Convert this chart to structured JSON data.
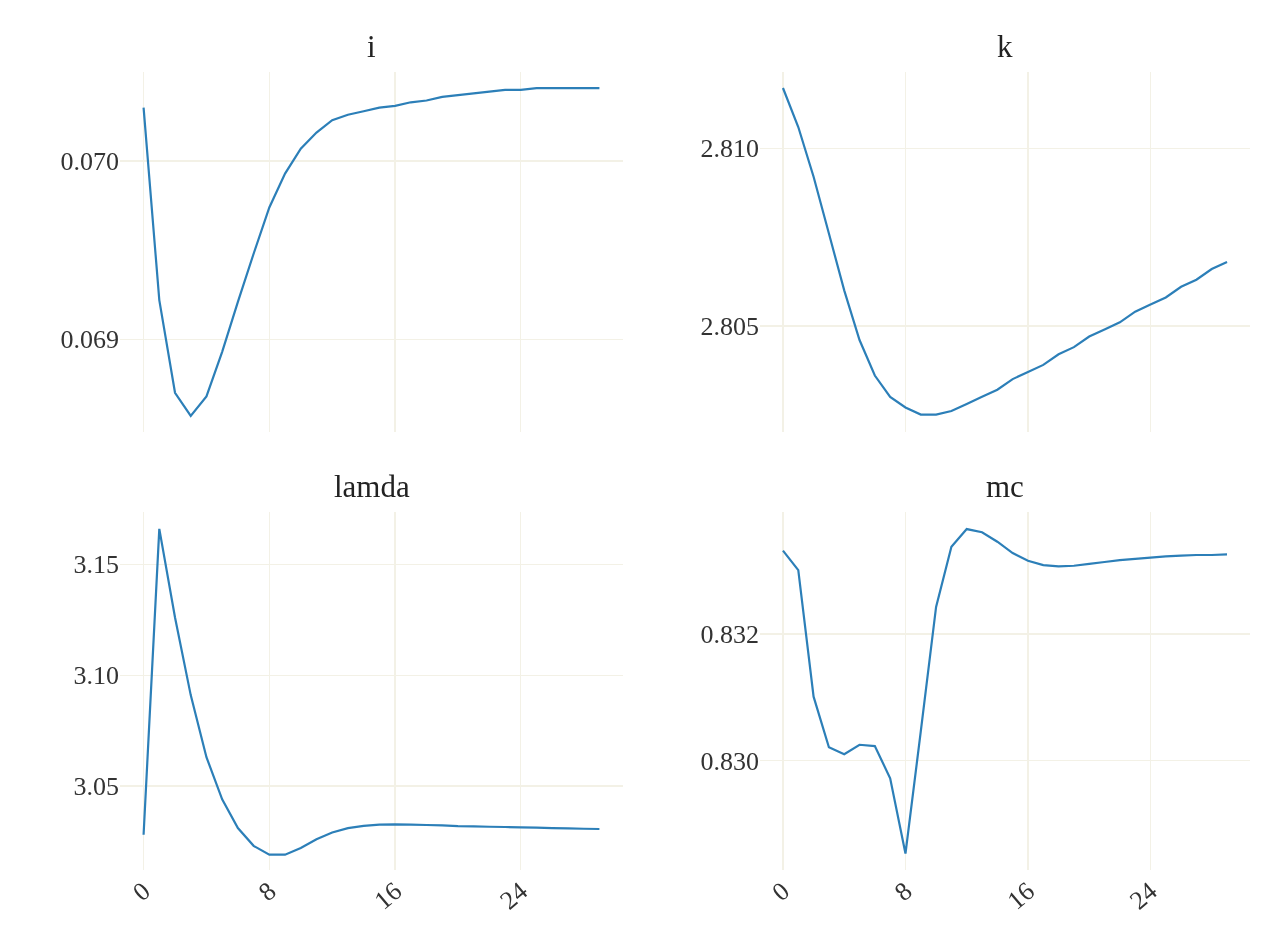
{
  "chart_data": [
    {
      "type": "line",
      "title": "i",
      "x": [
        0,
        1,
        2,
        3,
        4,
        5,
        6,
        7,
        8,
        9,
        10,
        11,
        12,
        13,
        14,
        15,
        16,
        17,
        18,
        19,
        20,
        21,
        22,
        23,
        24,
        25,
        26,
        27,
        28,
        29
      ],
      "xlim": [
        -1.5,
        30.5
      ],
      "xticks": [
        0,
        8,
        16,
        24
      ],
      "ylim": [
        0.06848,
        0.0705
      ],
      "yticks": [
        0.069,
        {
          "value": 0.07,
          "label": "0.070"
        }
      ],
      "grid": true,
      "tick_labels": "y",
      "line_style": "solid",
      "series": [
        {
          "color": "#2c7fb8",
          "values": [
            0.0703,
            0.06922,
            0.0687,
            0.06857,
            0.06868,
            0.06893,
            0.06921,
            0.06948,
            0.06974,
            0.06993,
            0.07007,
            0.07016,
            0.07023,
            0.07026,
            0.07028,
            0.0703,
            0.07031,
            0.07033,
            0.07034,
            0.07036,
            0.07037,
            0.07038,
            0.07039,
            0.0704,
            0.0704,
            0.07041,
            0.07041,
            0.07041,
            0.07041,
            0.07041
          ]
        }
      ]
    },
    {
      "type": "line",
      "title": "k",
      "x": [
        0,
        1,
        2,
        3,
        4,
        5,
        6,
        7,
        8,
        9,
        10,
        11,
        12,
        13,
        14,
        15,
        16,
        17,
        18,
        19,
        20,
        21,
        22,
        23,
        24,
        25,
        26,
        27,
        28,
        29
      ],
      "xlim": [
        -1.5,
        30.5
      ],
      "xticks": [
        0,
        8,
        16,
        24
      ],
      "ylim": [
        2.80201,
        2.81215
      ],
      "yticks": [
        2.805,
        {
          "value": 2.81,
          "label": "2.810"
        }
      ],
      "grid": true,
      "tick_labels": "y",
      "line_style": "solid",
      "series": [
        {
          "color": "#2c7fb8",
          "values": [
            2.8117,
            2.8106,
            2.8092,
            2.8076,
            2.806,
            2.8046,
            2.8036,
            2.803,
            2.8027,
            2.8025,
            2.8025,
            2.8026,
            2.8028,
            2.803,
            2.8032,
            2.8035,
            2.8037,
            2.8039,
            2.8042,
            2.8044,
            2.8047,
            2.8049,
            2.8051,
            2.8054,
            2.8056,
            2.8058,
            2.8061,
            2.8063,
            2.8066,
            2.8068
          ]
        }
      ]
    },
    {
      "type": "line",
      "title": "lamda",
      "x": [
        0,
        1,
        2,
        3,
        4,
        5,
        6,
        7,
        8,
        9,
        10,
        11,
        12,
        13,
        14,
        15,
        16,
        17,
        18,
        19,
        20,
        21,
        22,
        23,
        24,
        25,
        26,
        27,
        28,
        29
      ],
      "xlim": [
        -1.5,
        30.5
      ],
      "xticks": [
        0,
        8,
        16,
        24
      ],
      "ylim": [
        3.0121,
        3.1736
      ],
      "yticks": [
        3.05,
        {
          "value": 3.1,
          "label": "3.10"
        },
        3.15
      ],
      "grid": true,
      "line_style": "solid",
      "series": [
        {
          "color": "#2c7fb8",
          "values": [
            3.028,
            3.166,
            3.126,
            3.091,
            3.063,
            3.044,
            3.031,
            3.023,
            3.019,
            3.019,
            3.022,
            3.026,
            3.029,
            3.031,
            3.032,
            3.0326,
            3.0327,
            3.0326,
            3.0324,
            3.0322,
            3.0319,
            3.0318,
            3.0316,
            3.0315,
            3.0313,
            3.0312,
            3.031,
            3.0309,
            3.0307,
            3.0306
          ]
        }
      ]
    },
    {
      "type": "line",
      "title": "mc",
      "x": [
        0,
        1,
        2,
        3,
        4,
        5,
        6,
        7,
        8,
        9,
        10,
        11,
        12,
        13,
        14,
        15,
        16,
        17,
        18,
        19,
        20,
        21,
        22,
        23,
        24,
        25,
        26,
        27,
        28,
        29
      ],
      "xlim": [
        -1.5,
        30.5
      ],
      "xticks": [
        0,
        8,
        16,
        24
      ],
      "ylim": [
        0.82827,
        0.83393
      ],
      "yticks": [
        {
          "value": 0.83,
          "label": "0.830"
        },
        0.832
      ],
      "grid": true,
      "line_style": "solid",
      "series": [
        {
          "color": "#2c7fb8",
          "values": [
            0.83332,
            0.83301,
            0.83101,
            0.83021,
            0.8301,
            0.83025,
            0.83023,
            0.82972,
            0.82853,
            0.83046,
            0.83243,
            0.83338,
            0.83366,
            0.83361,
            0.83346,
            0.83328,
            0.83316,
            0.83309,
            0.83307,
            0.83308,
            0.83311,
            0.83314,
            0.83317,
            0.83319,
            0.83321,
            0.83323,
            0.83324,
            0.83325,
            0.83325,
            0.83326
          ]
        }
      ]
    }
  ]
}
